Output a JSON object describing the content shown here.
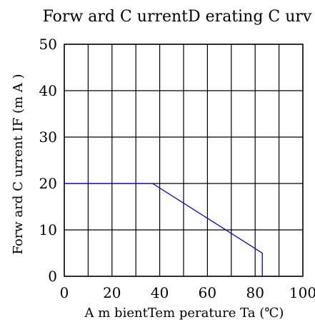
{
  "chart_data": {
    "type": "line",
    "title": "Forw ard C urrentD erating C urv",
    "xlabel": "A m bientTem perature Ta (℃)",
    "ylabel": "Forw ard C urrent IF (m A )",
    "xlim": [
      0,
      100
    ],
    "ylim": [
      0,
      50
    ],
    "x_ticks": [
      0,
      20,
      40,
      60,
      80,
      100
    ],
    "y_ticks": [
      0,
      10,
      20,
      30,
      40,
      50
    ],
    "x_tick_labels": [
      "0",
      "20",
      "40",
      "60",
      "80",
      "100"
    ],
    "y_tick_labels": [
      "0",
      "10",
      "20",
      "30",
      "40",
      "50"
    ],
    "x_gridlines": [
      0,
      10,
      20,
      30,
      40,
      50,
      60,
      70,
      80,
      90,
      100
    ],
    "y_gridlines": [
      0,
      10,
      20,
      30,
      40,
      50
    ],
    "grid": true,
    "legend": "none",
    "series": [
      {
        "color": "#0000cc",
        "x": [
          0,
          37,
          83,
          83
        ],
        "y": [
          20,
          20,
          5,
          0
        ]
      }
    ]
  }
}
